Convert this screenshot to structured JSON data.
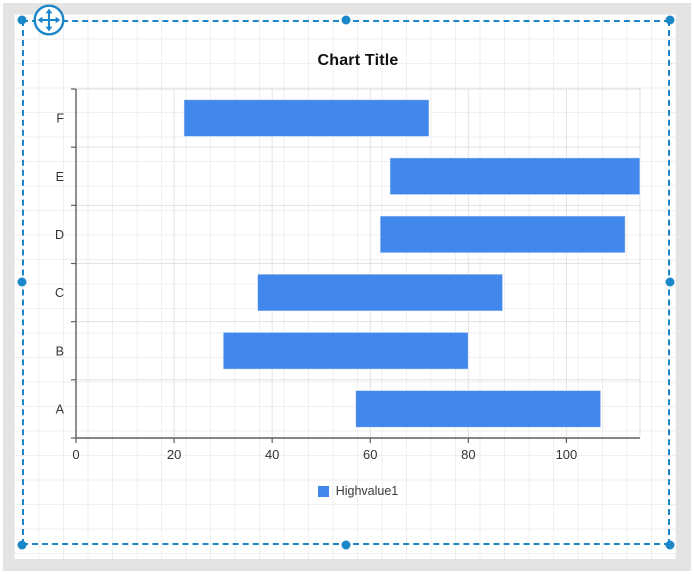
{
  "ui": {
    "selection_color": "#1b87c9",
    "background_color": "#e4e4e4",
    "canvas_color": "#ffffff",
    "handles": [
      "top-left",
      "top-middle",
      "top-right",
      "middle-left",
      "middle-right",
      "bottom-left",
      "bottom-middle",
      "bottom-right"
    ],
    "move_icon": "move-icon"
  },
  "chart_data": {
    "type": "bar",
    "orientation": "horizontal-range",
    "title": "Chart Title",
    "categories": [
      "F",
      "E",
      "D",
      "C",
      "B",
      "A"
    ],
    "series": [
      {
        "name": "Highvalue1",
        "color": "#4288ec",
        "low": [
          22,
          64,
          62,
          37,
          30,
          57
        ],
        "high": [
          72,
          115,
          112,
          87,
          80,
          107
        ]
      }
    ],
    "xlabel": "",
    "ylabel": "",
    "xlim": [
      0,
      115
    ],
    "xticks": [
      0,
      20,
      40,
      60,
      80,
      100
    ],
    "grid": true,
    "legend": {
      "position": "bottom",
      "entries": [
        {
          "label": "Highvalue1",
          "color": "#4288ec"
        }
      ]
    },
    "colors": {
      "axis": "#5f5f5f",
      "gridline": "#e2e2e2",
      "tick_text": "#333333"
    }
  }
}
